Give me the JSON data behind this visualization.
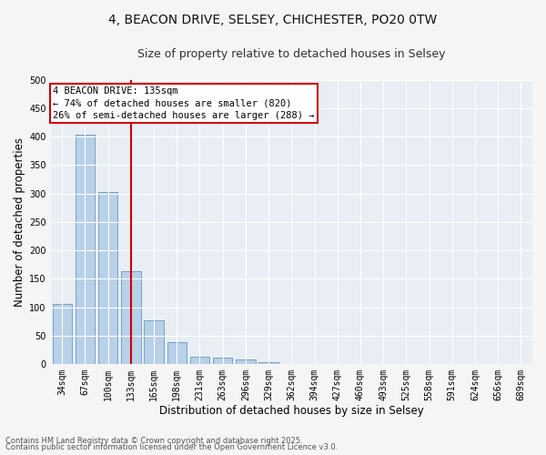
{
  "title_line1": "4, BEACON DRIVE, SELSEY, CHICHESTER, PO20 0TW",
  "title_line2": "Size of property relative to detached houses in Selsey",
  "xlabel": "Distribution of detached houses by size in Selsey",
  "ylabel": "Number of detached properties",
  "categories": [
    "34sqm",
    "67sqm",
    "100sqm",
    "133sqm",
    "165sqm",
    "198sqm",
    "231sqm",
    "263sqm",
    "296sqm",
    "329sqm",
    "362sqm",
    "394sqm",
    "427sqm",
    "460sqm",
    "493sqm",
    "525sqm",
    "558sqm",
    "591sqm",
    "624sqm",
    "656sqm",
    "689sqm"
  ],
  "values": [
    106,
    403,
    303,
    163,
    77,
    38,
    13,
    11,
    9,
    4,
    1,
    0,
    0,
    0,
    0,
    0,
    0,
    0,
    0,
    0,
    1
  ],
  "bar_color": "#b8d0e8",
  "bar_edge_color": "#6699bb",
  "vline_color": "#cc0000",
  "annotation_title": "4 BEACON DRIVE: 135sqm",
  "annotation_line2": "← 74% of detached houses are smaller (820)",
  "annotation_line3": "26% of semi-detached houses are larger (288) →",
  "annotation_box_color": "#cc0000",
  "ylim": [
    0,
    500
  ],
  "yticks": [
    0,
    50,
    100,
    150,
    200,
    250,
    300,
    350,
    400,
    450,
    500
  ],
  "plot_bg_color": "#e8eef4",
  "grid_color": "#ffffff",
  "fig_bg_color": "#f5f5f5",
  "footnote_line1": "Contains HM Land Registry data © Crown copyright and database right 2025.",
  "footnote_line2": "Contains public sector information licensed under the Open Government Licence v3.0.",
  "title_fontsize": 10,
  "subtitle_fontsize": 9,
  "axis_label_fontsize": 8.5,
  "tick_fontsize": 7,
  "annotation_fontsize": 7.5,
  "footnote_fontsize": 6
}
